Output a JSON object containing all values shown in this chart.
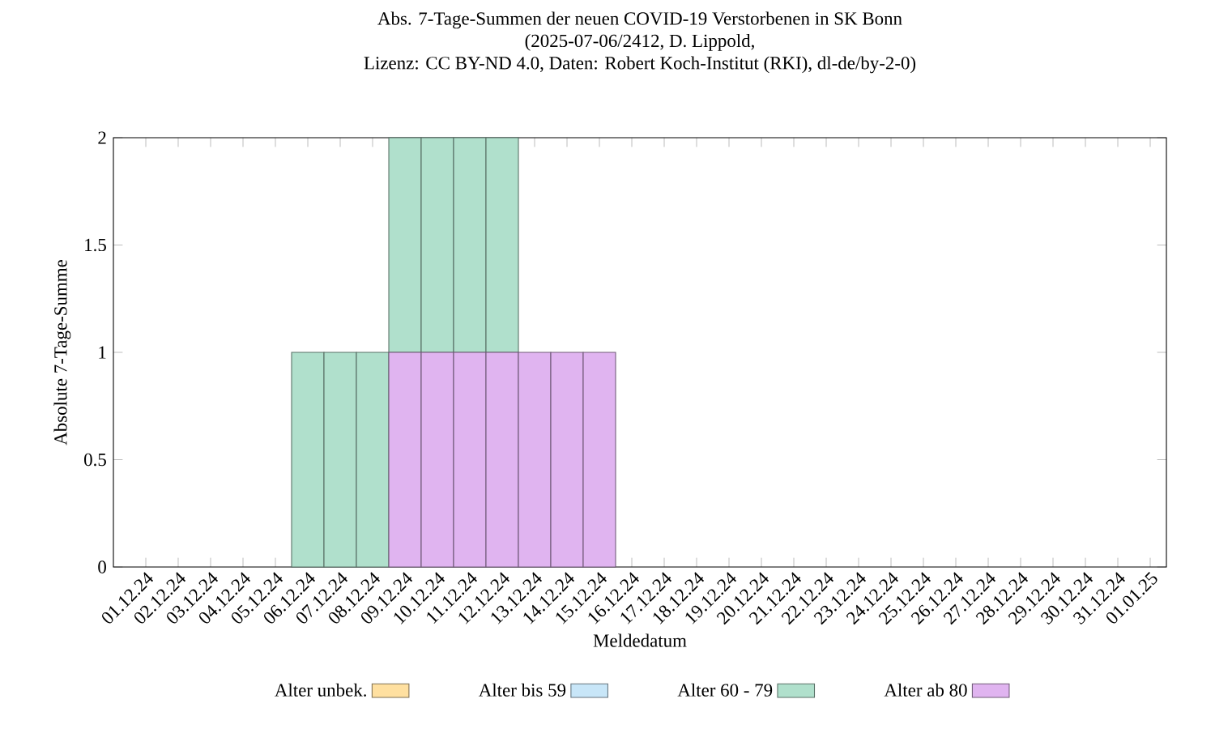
{
  "chart_data": {
    "type": "bar",
    "stacked": true,
    "title": "Abs. 7-Tage-Summen der neuen COVID-19 Verstorbenen in SK Bonn",
    "subtitle": "(2025-07-06/2412, D. Lippold,",
    "annotations": [
      "Lizenz: CC BY-ND 4.0, Daten: Robert Koch-Institut (RKI), dl-de/by-2-0)"
    ],
    "xlabel": "Meldedatum",
    "ylabel": "Absolute 7-Tage-Summe",
    "categories": [
      "01.12.24",
      "02.12.24",
      "03.12.24",
      "04.12.24",
      "05.12.24",
      "06.12.24",
      "07.12.24",
      "08.12.24",
      "09.12.24",
      "10.12.24",
      "11.12.24",
      "12.12.24",
      "13.12.24",
      "14.12.24",
      "15.12.24",
      "16.12.24",
      "17.12.24",
      "18.12.24",
      "19.12.24",
      "20.12.24",
      "21.12.24",
      "22.12.24",
      "23.12.24",
      "24.12.24",
      "25.12.24",
      "26.12.24",
      "27.12.24",
      "28.12.24",
      "29.12.24",
      "30.12.24",
      "31.12.24",
      "01.01.25"
    ],
    "series": [
      {
        "name": "Alter ab 80",
        "color": "#e0b4f0",
        "values": [
          0,
          0,
          0,
          0,
          0,
          0,
          0,
          0,
          1,
          1,
          1,
          1,
          1,
          1,
          1,
          0,
          0,
          0,
          0,
          0,
          0,
          0,
          0,
          0,
          0,
          0,
          0,
          0,
          0,
          0,
          0,
          0
        ]
      },
      {
        "name": "Alter 60 - 79",
        "color": "#b0e0cc",
        "values": [
          0,
          0,
          0,
          0,
          0,
          1,
          1,
          1,
          1,
          1,
          1,
          1,
          0,
          0,
          0,
          0,
          0,
          0,
          0,
          0,
          0,
          0,
          0,
          0,
          0,
          0,
          0,
          0,
          0,
          0,
          0,
          0
        ]
      },
      {
        "name": "Alter bis 59",
        "color": "#c8e6f8",
        "values": [
          0,
          0,
          0,
          0,
          0,
          0,
          0,
          0,
          0,
          0,
          0,
          0,
          0,
          0,
          0,
          0,
          0,
          0,
          0,
          0,
          0,
          0,
          0,
          0,
          0,
          0,
          0,
          0,
          0,
          0,
          0,
          0
        ]
      },
      {
        "name": "Alter unbek.",
        "color": "#ffe0a0",
        "values": [
          0,
          0,
          0,
          0,
          0,
          0,
          0,
          0,
          0,
          0,
          0,
          0,
          0,
          0,
          0,
          0,
          0,
          0,
          0,
          0,
          0,
          0,
          0,
          0,
          0,
          0,
          0,
          0,
          0,
          0,
          0,
          0
        ]
      }
    ],
    "ylim": [
      0,
      2
    ],
    "yticks": [
      0,
      0.5,
      1,
      1.5,
      2
    ],
    "grid": false,
    "legend": "bottom"
  }
}
